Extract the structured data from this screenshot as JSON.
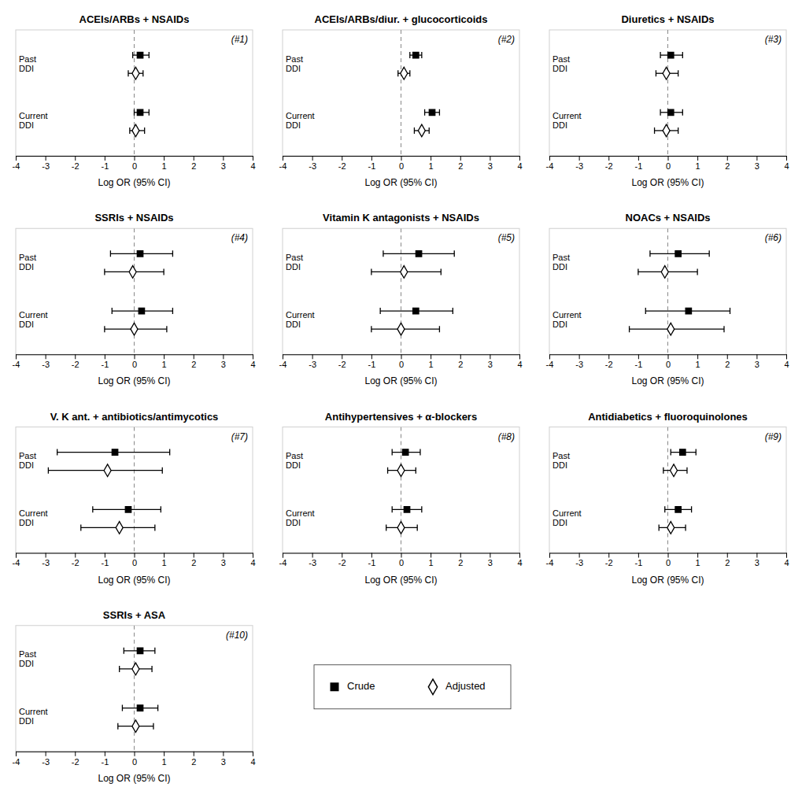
{
  "chart_data": [
    {
      "type": "forest",
      "orientation": "horizontal",
      "title": "ACEIs/ARBs + NSAIDs",
      "annotation": "(#1)",
      "xlabel": "Log OR (95% CI)",
      "xlim": [
        -4,
        4
      ],
      "xticks": [
        -4,
        -3,
        -2,
        -1,
        0,
        1,
        2,
        3,
        4
      ],
      "categories": [
        "Past\nDDI",
        "Current\nDDI"
      ],
      "series": [
        {
          "name": "Crude",
          "marker": "square",
          "color": "black",
          "values": [
            0.2,
            0.2
          ],
          "lo": [
            -0.05,
            0.0
          ],
          "hi": [
            0.5,
            0.5
          ]
        },
        {
          "name": "Adjusted",
          "marker": "diamond-open",
          "color": "black",
          "values": [
            0.05,
            0.05
          ],
          "lo": [
            -0.2,
            -0.15
          ],
          "hi": [
            0.3,
            0.35
          ]
        }
      ]
    },
    {
      "type": "forest",
      "orientation": "horizontal",
      "title": "ACEIs/ARBs/diur. + glucocorticoids",
      "annotation": "(#2)",
      "xlabel": "Log OR (95% CI)",
      "xlim": [
        -4,
        4
      ],
      "xticks": [
        -4,
        -3,
        -2,
        -1,
        0,
        1,
        2,
        3,
        4
      ],
      "categories": [
        "Past\nDDI",
        "Current\nDDI"
      ],
      "series": [
        {
          "name": "Crude",
          "marker": "square",
          "color": "black",
          "values": [
            0.5,
            1.05
          ],
          "lo": [
            0.3,
            0.8
          ],
          "hi": [
            0.7,
            1.3
          ]
        },
        {
          "name": "Adjusted",
          "marker": "diamond-open",
          "color": "black",
          "values": [
            0.1,
            0.7
          ],
          "lo": [
            -0.1,
            0.45
          ],
          "hi": [
            0.3,
            0.95
          ]
        }
      ]
    },
    {
      "type": "forest",
      "orientation": "horizontal",
      "title": "Diuretics + NSAIDs",
      "annotation": "(#3)",
      "xlabel": "Log OR (95% CI)",
      "xlim": [
        -4,
        4
      ],
      "xticks": [
        -4,
        -3,
        -2,
        -1,
        0,
        1,
        2,
        3,
        4
      ],
      "categories": [
        "Past\nDDI",
        "Current\nDDI"
      ],
      "series": [
        {
          "name": "Crude",
          "marker": "square",
          "color": "black",
          "values": [
            0.1,
            0.1
          ],
          "lo": [
            -0.25,
            -0.25
          ],
          "hi": [
            0.5,
            0.5
          ]
        },
        {
          "name": "Adjusted",
          "marker": "diamond-open",
          "color": "black",
          "values": [
            -0.05,
            -0.05
          ],
          "lo": [
            -0.4,
            -0.45
          ],
          "hi": [
            0.35,
            0.35
          ]
        }
      ]
    },
    {
      "type": "forest",
      "orientation": "horizontal",
      "title": "SSRIs + NSAIDs",
      "annotation": "(#4)",
      "xlabel": "Log OR (95% CI)",
      "xlim": [
        -4,
        4
      ],
      "xticks": [
        -4,
        -3,
        -2,
        -1,
        0,
        1,
        2,
        3,
        4
      ],
      "categories": [
        "Past\nDDI",
        "Current\nDDI"
      ],
      "series": [
        {
          "name": "Crude",
          "marker": "square",
          "color": "black",
          "values": [
            0.2,
            0.25
          ],
          "lo": [
            -0.8,
            -0.75
          ],
          "hi": [
            1.3,
            1.3
          ]
        },
        {
          "name": "Adjusted",
          "marker": "diamond-open",
          "color": "black",
          "values": [
            -0.05,
            0.0
          ],
          "lo": [
            -1.0,
            -1.0
          ],
          "hi": [
            1.0,
            1.1
          ]
        }
      ]
    },
    {
      "type": "forest",
      "orientation": "horizontal",
      "title": "Vitamin K antagonists + NSAIDs",
      "annotation": "(#5)",
      "xlabel": "Log OR (95% CI)",
      "xlim": [
        -4,
        4
      ],
      "xticks": [
        -4,
        -3,
        -2,
        -1,
        0,
        1,
        2,
        3,
        4
      ],
      "categories": [
        "Past\nDDI",
        "Current\nDDI"
      ],
      "series": [
        {
          "name": "Crude",
          "marker": "square",
          "color": "black",
          "values": [
            0.6,
            0.5
          ],
          "lo": [
            -0.6,
            -0.7
          ],
          "hi": [
            1.8,
            1.75
          ]
        },
        {
          "name": "Adjusted",
          "marker": "diamond-open",
          "color": "black",
          "values": [
            0.1,
            0.0
          ],
          "lo": [
            -1.0,
            -1.0
          ],
          "hi": [
            1.35,
            1.3
          ]
        }
      ]
    },
    {
      "type": "forest",
      "orientation": "horizontal",
      "title": "NOACs + NSAIDs",
      "annotation": "(#6)",
      "xlabel": "Log OR (95% CI)",
      "xlim": [
        -4,
        4
      ],
      "xticks": [
        -4,
        -3,
        -2,
        -1,
        0,
        1,
        2,
        3,
        4
      ],
      "categories": [
        "Past\nDDI",
        "Current\nDDI"
      ],
      "series": [
        {
          "name": "Crude",
          "marker": "square",
          "color": "black",
          "values": [
            0.35,
            0.7
          ],
          "lo": [
            -0.6,
            -0.75
          ],
          "hi": [
            1.4,
            2.1
          ]
        },
        {
          "name": "Adjusted",
          "marker": "diamond-open",
          "color": "black",
          "values": [
            -0.1,
            0.1
          ],
          "lo": [
            -1.0,
            -1.3
          ],
          "hi": [
            1.0,
            1.9
          ]
        }
      ]
    },
    {
      "type": "forest",
      "orientation": "horizontal",
      "title": "V. K ant. + antibiotics/antimycotics",
      "annotation": "(#7)",
      "xlabel": "Log OR (95% CI)",
      "xlim": [
        -4,
        4
      ],
      "xticks": [
        -4,
        -3,
        -2,
        -1,
        0,
        1,
        2,
        3,
        4
      ],
      "categories": [
        "Past\nDDI",
        "Current\nDDI"
      ],
      "series": [
        {
          "name": "Crude",
          "marker": "square",
          "color": "black",
          "values": [
            -0.65,
            -0.2
          ],
          "lo": [
            -2.6,
            -1.4
          ],
          "hi": [
            1.2,
            0.9
          ]
        },
        {
          "name": "Adjusted",
          "marker": "diamond-open",
          "color": "black",
          "values": [
            -0.9,
            -0.5
          ],
          "lo": [
            -2.9,
            -1.8
          ],
          "hi": [
            0.95,
            0.7
          ]
        }
      ]
    },
    {
      "type": "forest",
      "orientation": "horizontal",
      "title": "Antihypertensives + α-blockers",
      "annotation": "(#8)",
      "xlabel": "Log OR (95% CI)",
      "xlim": [
        -4,
        4
      ],
      "xticks": [
        -4,
        -3,
        -2,
        -1,
        0,
        1,
        2,
        3,
        4
      ],
      "categories": [
        "Past\nDDI",
        "Current\nDDI"
      ],
      "series": [
        {
          "name": "Crude",
          "marker": "square",
          "color": "black",
          "values": [
            0.15,
            0.2
          ],
          "lo": [
            -0.3,
            -0.3
          ],
          "hi": [
            0.65,
            0.7
          ]
        },
        {
          "name": "Adjusted",
          "marker": "diamond-open",
          "color": "black",
          "values": [
            0.0,
            0.0
          ],
          "lo": [
            -0.45,
            -0.5
          ],
          "hi": [
            0.5,
            0.55
          ]
        }
      ]
    },
    {
      "type": "forest",
      "orientation": "horizontal",
      "title": "Antidiabetics + fluoroquinolones",
      "annotation": "(#9)",
      "xlabel": "Log OR (95% CI)",
      "xlim": [
        -4,
        4
      ],
      "xticks": [
        -4,
        -3,
        -2,
        -1,
        0,
        1,
        2,
        3,
        4
      ],
      "categories": [
        "Past\nDDI",
        "Current\nDDI"
      ],
      "series": [
        {
          "name": "Crude",
          "marker": "square",
          "color": "black",
          "values": [
            0.5,
            0.35
          ],
          "lo": [
            0.1,
            -0.1
          ],
          "hi": [
            0.95,
            0.8
          ]
        },
        {
          "name": "Adjusted",
          "marker": "diamond-open",
          "color": "black",
          "values": [
            0.2,
            0.1
          ],
          "lo": [
            -0.15,
            -0.3
          ],
          "hi": [
            0.65,
            0.6
          ]
        }
      ]
    },
    {
      "type": "forest",
      "orientation": "horizontal",
      "title": "SSRIs + ASA",
      "annotation": "(#10)",
      "xlabel": "Log OR (95% CI)",
      "xlim": [
        -4,
        4
      ],
      "xticks": [
        -4,
        -3,
        -2,
        -1,
        0,
        1,
        2,
        3,
        4
      ],
      "categories": [
        "Past\nDDI",
        "Current\nDDI"
      ],
      "series": [
        {
          "name": "Crude",
          "marker": "square",
          "color": "black",
          "values": [
            0.2,
            0.2
          ],
          "lo": [
            -0.35,
            -0.4
          ],
          "hi": [
            0.7,
            0.8
          ]
        },
        {
          "name": "Adjusted",
          "marker": "diamond-open",
          "color": "black",
          "values": [
            0.05,
            0.05
          ],
          "lo": [
            -0.5,
            -0.55
          ],
          "hi": [
            0.6,
            0.65
          ]
        }
      ]
    }
  ]
}
